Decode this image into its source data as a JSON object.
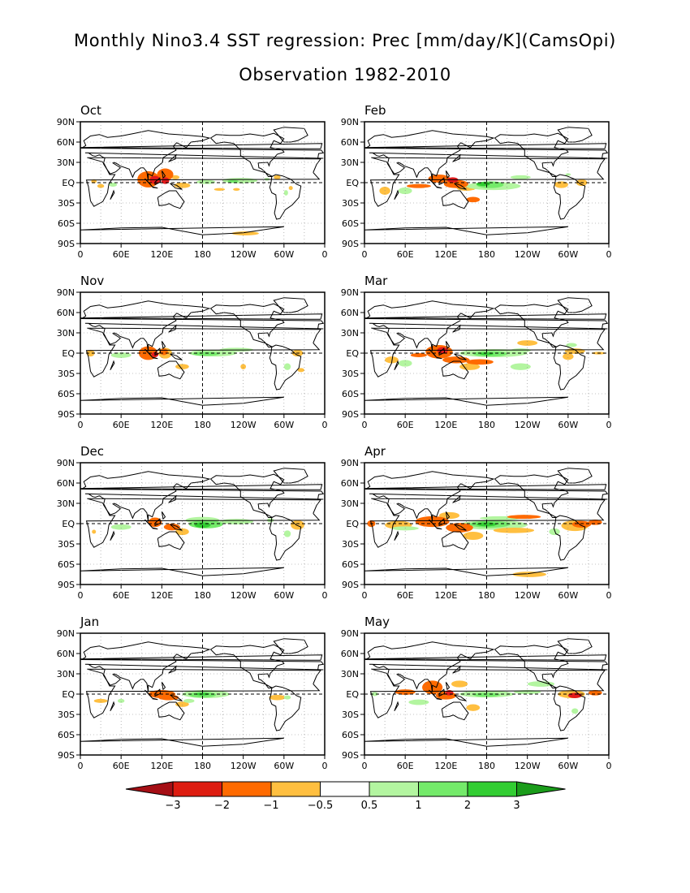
{
  "title": "Monthly Nino3.4 SST regression: Prec [mm/day/K](CamsOpi)",
  "subtitle": "Observation 1982-2010",
  "lat_ticks": [
    "90N",
    "60N",
    "30N",
    "EQ",
    "30S",
    "60S",
    "90S"
  ],
  "lon_ticks": [
    "0",
    "60E",
    "120E",
    "180",
    "120W",
    "60W",
    "0"
  ],
  "colors": {
    "neg3": "#a50f15",
    "neg2": "#e31a1c",
    "neg1": "#ff6a00",
    "neg05": "#ffbf40",
    "pos05": "#b3f5a0",
    "pos1": "#74ea6a",
    "pos2": "#32cd32",
    "pos3": "#1a9c1a"
  },
  "colorbar": {
    "labels": [
      "-3",
      "-2",
      "-1",
      "-0.5",
      "0.5",
      "1",
      "2",
      "3"
    ],
    "fills": [
      "#a50f15",
      "#dd1c10",
      "#ff6a00",
      "#ffbf40",
      "#ffffff",
      "#b3f5a0",
      "#74ea6a",
      "#32cd32",
      "#1a9c1a"
    ]
  },
  "panels": [
    {
      "label": "Oct",
      "col": 0,
      "row": 0,
      "blobs": [
        [
          100,
          5,
          16,
          12,
          "neg1"
        ],
        [
          110,
          4,
          8,
          6,
          "neg2"
        ],
        [
          125,
          12,
          12,
          9,
          "neg1"
        ],
        [
          125,
          3,
          6,
          5,
          "neg2"
        ],
        [
          150,
          -4,
          12,
          4,
          "neg05"
        ],
        [
          140,
          8,
          6,
          3,
          "neg05"
        ],
        [
          185,
          1,
          14,
          3,
          "pos05"
        ],
        [
          235,
          3,
          26,
          4,
          "pos05"
        ],
        [
          225,
          2,
          8,
          2,
          "pos1"
        ],
        [
          20,
          2,
          4,
          3,
          "neg05"
        ],
        [
          30,
          -5,
          5,
          3,
          "neg05"
        ],
        [
          48,
          -3,
          6,
          3,
          "pos05"
        ],
        [
          205,
          -10,
          8,
          2,
          "neg05"
        ],
        [
          230,
          -10,
          5,
          2,
          "neg05"
        ],
        [
          290,
          8,
          5,
          3,
          "neg05"
        ],
        [
          275,
          5,
          4,
          2,
          "pos05"
        ],
        [
          243,
          -75,
          20,
          3,
          "neg05"
        ],
        [
          303,
          -15,
          3,
          4,
          "pos05"
        ],
        [
          310,
          -8,
          3,
          3,
          "neg05"
        ]
      ]
    },
    {
      "label": "Feb",
      "col": 1,
      "row": 0,
      "blobs": [
        [
          110,
          6,
          16,
          6,
          "neg1"
        ],
        [
          135,
          -2,
          18,
          6,
          "neg1"
        ],
        [
          130,
          4,
          8,
          4,
          "neg2"
        ],
        [
          150,
          -8,
          14,
          4,
          "neg05"
        ],
        [
          80,
          -5,
          18,
          3,
          "neg1"
        ],
        [
          30,
          -12,
          8,
          6,
          "neg05"
        ],
        [
          60,
          -12,
          10,
          5,
          "pos05"
        ],
        [
          160,
          -25,
          10,
          4,
          "neg1"
        ],
        [
          190,
          -5,
          40,
          6,
          "pos05"
        ],
        [
          185,
          -3,
          20,
          5,
          "pos1"
        ],
        [
          175,
          -2,
          10,
          3,
          "pos2"
        ],
        [
          180,
          -1,
          4,
          1.5,
          "pos3"
        ],
        [
          230,
          8,
          15,
          3,
          "pos05"
        ],
        [
          290,
          -3,
          10,
          5,
          "neg05"
        ],
        [
          320,
          0,
          8,
          5,
          "neg05"
        ],
        [
          300,
          12,
          4,
          2,
          "pos05"
        ]
      ]
    },
    {
      "label": "Nov",
      "col": 0,
      "row": 1,
      "blobs": [
        [
          100,
          0,
          14,
          10,
          "neg1"
        ],
        [
          125,
          0,
          10,
          8,
          "neg05"
        ],
        [
          123,
          2,
          6,
          5,
          "neg1"
        ],
        [
          110,
          -2,
          5,
          4,
          "neg2"
        ],
        [
          150,
          -20,
          10,
          4,
          "neg05"
        ],
        [
          60,
          -3,
          15,
          4,
          "pos05"
        ],
        [
          195,
          0,
          35,
          5,
          "pos05"
        ],
        [
          185,
          -1,
          20,
          3,
          "pos1"
        ],
        [
          230,
          5,
          25,
          3,
          "pos05"
        ],
        [
          15,
          0,
          6,
          5,
          "neg05"
        ],
        [
          240,
          -20,
          4,
          4,
          "neg05"
        ],
        [
          320,
          0,
          8,
          5,
          "neg05"
        ],
        [
          305,
          -20,
          5,
          5,
          "pos05"
        ],
        [
          325,
          -25,
          5,
          3,
          "neg05"
        ]
      ]
    },
    {
      "label": "Mar",
      "col": 1,
      "row": 1,
      "blobs": [
        [
          110,
          2,
          20,
          10,
          "neg1"
        ],
        [
          115,
          4,
          8,
          5,
          "neg2"
        ],
        [
          135,
          -10,
          20,
          5,
          "neg1"
        ],
        [
          155,
          -20,
          15,
          5,
          "neg05"
        ],
        [
          80,
          -3,
          12,
          3,
          "neg1"
        ],
        [
          40,
          -10,
          10,
          5,
          "neg05"
        ],
        [
          60,
          -15,
          10,
          5,
          "pos05"
        ],
        [
          190,
          0,
          50,
          6,
          "pos05"
        ],
        [
          185,
          -1,
          25,
          4,
          "pos1"
        ],
        [
          180,
          -1,
          10,
          2,
          "pos2"
        ],
        [
          170,
          -13,
          20,
          4,
          "neg1"
        ],
        [
          230,
          -20,
          15,
          5,
          "pos05"
        ],
        [
          230,
          4,
          15,
          3,
          "pos05"
        ],
        [
          240,
          15,
          15,
          4,
          "neg05"
        ],
        [
          310,
          3,
          15,
          4,
          "neg05"
        ],
        [
          345,
          0,
          10,
          2,
          "neg05"
        ],
        [
          300,
          -5,
          8,
          5,
          "neg05"
        ],
        [
          305,
          12,
          8,
          3,
          "pos05"
        ]
      ]
    },
    {
      "label": "Dec",
      "col": 0,
      "row": 2,
      "blobs": [
        [
          110,
          2,
          10,
          7,
          "neg1"
        ],
        [
          135,
          -5,
          12,
          5,
          "neg1"
        ],
        [
          150,
          -12,
          10,
          5,
          "neg05"
        ],
        [
          180,
          5,
          25,
          5,
          "pos05"
        ],
        [
          185,
          -1,
          25,
          6,
          "pos1"
        ],
        [
          180,
          -2,
          12,
          4,
          "pos2"
        ],
        [
          230,
          3,
          25,
          4,
          "pos05"
        ],
        [
          60,
          -5,
          15,
          4,
          "pos05"
        ],
        [
          20,
          -12,
          3,
          3,
          "neg05"
        ],
        [
          320,
          -2,
          10,
          7,
          "neg05"
        ],
        [
          305,
          -15,
          5,
          5,
          "pos05"
        ],
        [
          280,
          5,
          5,
          3,
          "pos05"
        ]
      ]
    },
    {
      "label": "Apr",
      "col": 1,
      "row": 2,
      "blobs": [
        [
          100,
          3,
          25,
          8,
          "neg1"
        ],
        [
          125,
          12,
          15,
          5,
          "neg05"
        ],
        [
          140,
          -6,
          20,
          7,
          "neg1"
        ],
        [
          160,
          -18,
          15,
          6,
          "neg05"
        ],
        [
          50,
          -2,
          20,
          6,
          "neg05"
        ],
        [
          60,
          -7,
          20,
          3,
          "pos05"
        ],
        [
          10,
          0,
          6,
          5,
          "neg1"
        ],
        [
          190,
          -2,
          50,
          7,
          "pos05"
        ],
        [
          185,
          -1,
          30,
          5,
          "pos1"
        ],
        [
          180,
          -1,
          15,
          3,
          "pos2"
        ],
        [
          200,
          8,
          30,
          3,
          "pos05"
        ],
        [
          220,
          -10,
          30,
          4,
          "neg05"
        ],
        [
          235,
          10,
          25,
          3,
          "neg1"
        ],
        [
          310,
          -3,
          20,
          8,
          "neg05"
        ],
        [
          320,
          -1,
          14,
          5,
          "neg1"
        ],
        [
          340,
          2,
          10,
          4,
          "neg1"
        ],
        [
          243,
          -75,
          25,
          4,
          "neg05"
        ],
        [
          280,
          -12,
          8,
          5,
          "pos05"
        ]
      ]
    },
    {
      "label": "Jan",
      "col": 0,
      "row": 3,
      "blobs": [
        [
          120,
          0,
          20,
          6,
          "neg1"
        ],
        [
          130,
          -5,
          15,
          4,
          "neg1"
        ],
        [
          150,
          -15,
          10,
          4,
          "neg05"
        ],
        [
          185,
          0,
          35,
          6,
          "pos05"
        ],
        [
          180,
          -1,
          20,
          4,
          "pos1"
        ],
        [
          180,
          0,
          10,
          2,
          "pos2"
        ],
        [
          160,
          -10,
          8,
          3,
          "pos05"
        ],
        [
          30,
          -10,
          10,
          3,
          "neg05"
        ],
        [
          60,
          -10,
          5,
          3,
          "pos05"
        ],
        [
          290,
          -5,
          12,
          4,
          "neg05"
        ],
        [
          305,
          -5,
          5,
          3,
          "pos05"
        ]
      ]
    },
    {
      "label": "May",
      "col": 1,
      "row": 3,
      "blobs": [
        [
          100,
          10,
          15,
          10,
          "neg1"
        ],
        [
          120,
          -2,
          15,
          6,
          "neg1"
        ],
        [
          125,
          2,
          6,
          4,
          "neg2"
        ],
        [
          140,
          15,
          12,
          5,
          "neg05"
        ],
        [
          160,
          -20,
          10,
          5,
          "neg05"
        ],
        [
          60,
          3,
          15,
          4,
          "neg1"
        ],
        [
          80,
          -12,
          15,
          4,
          "pos05"
        ],
        [
          180,
          0,
          40,
          5,
          "pos05"
        ],
        [
          180,
          -1,
          20,
          3,
          "pos1"
        ],
        [
          240,
          3,
          20,
          3,
          "pos05"
        ],
        [
          260,
          15,
          20,
          4,
          "pos05"
        ],
        [
          305,
          0,
          20,
          6,
          "neg05"
        ],
        [
          310,
          -2,
          10,
          4,
          "neg2"
        ],
        [
          340,
          2,
          10,
          4,
          "neg1"
        ],
        [
          310,
          -25,
          5,
          4,
          "pos05"
        ],
        [
          15,
          0,
          5,
          3,
          "pos05"
        ]
      ]
    }
  ]
}
